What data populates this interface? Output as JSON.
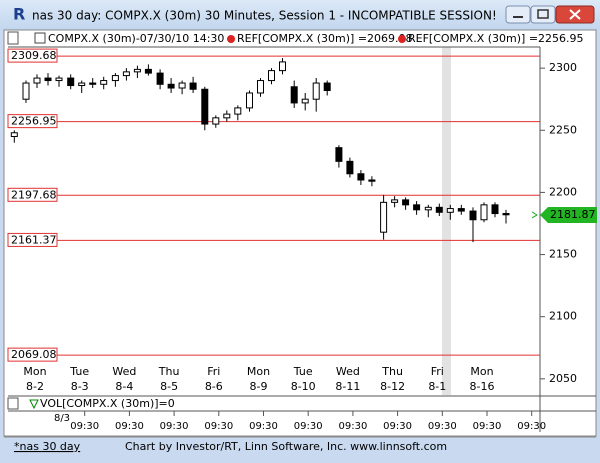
{
  "window": {
    "icon_text": "R",
    "title": "nas 30 day: COMPX.X (30m) 30 Minutes, Session 1 - INCOMPATIBLE SESSION!"
  },
  "header": {
    "symbol": "COMPX.X (30m)-07/30/10 14:30",
    "ref_1": "REF[COMPX.X (30m)] =2069.08",
    "ref_2": "REF[COMPX.X (30m)] =2256.95"
  },
  "chart_data": {
    "type": "candlestick",
    "categories": [
      "8-2",
      "8-3",
      "8-4",
      "8-5",
      "8-6",
      "8-9",
      "8-10",
      "8-11",
      "8-12",
      "8-1",
      "8-16"
    ],
    "weekdays": [
      "Mon",
      "Tue",
      "Wed",
      "Thu",
      "Fri",
      "Mon",
      "Tue",
      "Wed",
      "Thu",
      "Fri",
      "Mon"
    ],
    "open": [
      2245,
      2275,
      2288,
      2292,
      2290,
      2292,
      2286,
      2288,
      2287,
      2290,
      2294,
      2297,
      2299,
      2296,
      2287,
      2284,
      2288,
      2283,
      2255,
      2260,
      2263,
      2268,
      2280,
      2290,
      2298,
      2285,
      2272,
      2275,
      2288,
      2236,
      2225,
      2215,
      2210,
      2168,
      2192,
      2194,
      2190,
      2186,
      2188,
      2184,
      2187,
      2185,
      2178,
      2190,
      2183
    ],
    "high": [
      2250,
      2290,
      2295,
      2296,
      2294,
      2295,
      2290,
      2292,
      2293,
      2296,
      2300,
      2302,
      2303,
      2299,
      2292,
      2290,
      2293,
      2285,
      2262,
      2266,
      2270,
      2282,
      2292,
      2300,
      2308,
      2290,
      2280,
      2292,
      2290,
      2238,
      2228,
      2218,
      2213,
      2198,
      2197,
      2196,
      2193,
      2190,
      2191,
      2190,
      2190,
      2188,
      2192,
      2192,
      2186
    ],
    "low": [
      2240,
      2272,
      2284,
      2286,
      2285,
      2283,
      2280,
      2284,
      2283,
      2285,
      2290,
      2292,
      2294,
      2283,
      2280,
      2279,
      2280,
      2250,
      2252,
      2257,
      2258,
      2265,
      2277,
      2287,
      2295,
      2268,
      2266,
      2265,
      2278,
      2220,
      2212,
      2206,
      2205,
      2162,
      2188,
      2186,
      2182,
      2180,
      2181,
      2178,
      2182,
      2160,
      2176,
      2180,
      2175
    ],
    "close": [
      2248,
      2288,
      2292,
      2290,
      2292,
      2286,
      2288,
      2287,
      2290,
      2294,
      2297,
      2299,
      2296,
      2287,
      2284,
      2288,
      2283,
      2255,
      2260,
      2263,
      2268,
      2280,
      2290,
      2298,
      2305,
      2272,
      2275,
      2288,
      2282,
      2225,
      2215,
      2210,
      2209,
      2192,
      2194,
      2190,
      2186,
      2188,
      2184,
      2187,
      2185,
      2178,
      2190,
      2183,
      2182
    ],
    "ref_lines": [
      2309.68,
      2256.95,
      2197.68,
      2161.37,
      2069.08
    ],
    "last_value": 2181.87,
    "ylim": [
      2037,
      2317
    ],
    "yticks": [
      2050,
      2100,
      2150,
      2200,
      2250,
      2300
    ],
    "ref_color": "#e03030",
    "up_color": "#ffffff",
    "down_color": "#000000"
  },
  "volume_panel": {
    "label": "VOL[COMPX.X (30m)]=0",
    "date_label": "8/3",
    "time_labels": [
      "09:30",
      "09:30",
      "09:30",
      "09:30",
      "09:30",
      "09:30",
      "09:30",
      "09:30",
      "09:30",
      "09:30",
      "09:30"
    ]
  },
  "footer": {
    "link": "*nas 30 day",
    "credit": "Chart by Investor/RT, Linn Software, Inc. www.linnsoft.com"
  }
}
